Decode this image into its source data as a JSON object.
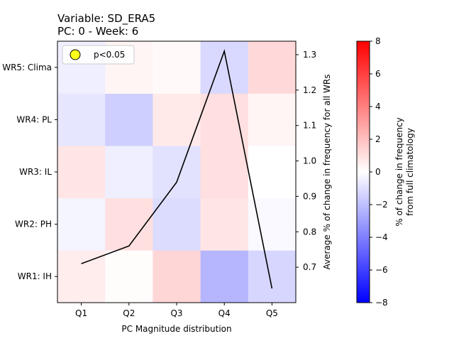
{
  "chart_data": {
    "type": "heatmap",
    "title_line1": "Variable: SD_ERA5",
    "title_line2": "PC: 0 - Week: 6",
    "xlabel": "PC Magnitude distribution",
    "ylabel_right": "Average % of change in frequency for all WRs",
    "colorbar_label_line1": "% of change in frequency",
    "colorbar_label_line2": "from full climatology",
    "x_categories": [
      "Q1",
      "Q2",
      "Q3",
      "Q4",
      "Q5"
    ],
    "y_categories": [
      "WR1: IH",
      "WR2: PH",
      "WR3: IL",
      "WR4: PL",
      "WR5: Clima"
    ],
    "heat_values": [
      [
        0.6,
        0.1,
        1.3,
        -2.3,
        -1.3
      ],
      [
        -0.3,
        1.0,
        -1.1,
        0.8,
        -0.2
      ],
      [
        0.8,
        -0.5,
        -0.9,
        1.0,
        0.0
      ],
      [
        -0.8,
        -1.5,
        0.7,
        1.0,
        0.3
      ],
      [
        -0.5,
        0.3,
        0.2,
        -1.2,
        1.2
      ]
    ],
    "color_range": [
      -8,
      8
    ],
    "colorbar_ticks": [
      -8,
      -6,
      -4,
      -2,
      0,
      2,
      4,
      6,
      8
    ],
    "colorbar_tick_labels": [
      "−8",
      "−6",
      "−4",
      "−2",
      "0",
      "2",
      "4",
      "6",
      "8"
    ],
    "line_series": {
      "values": [
        0.71,
        0.76,
        0.94,
        1.31,
        0.64
      ],
      "color": "#000000"
    },
    "right_ylim": [
      0.6,
      1.338
    ],
    "right_ticks": [
      0.7,
      0.8,
      0.9,
      1.0,
      1.1,
      1.2,
      1.3
    ],
    "right_tick_labels": [
      "0.7",
      "0.8",
      "0.9",
      "1.0",
      "1.1",
      "1.2",
      "1.3"
    ],
    "legend": {
      "label": "p<0.05",
      "marker_color": "#ffff1a",
      "placement": "top-left"
    },
    "colormap": "bwr"
  }
}
